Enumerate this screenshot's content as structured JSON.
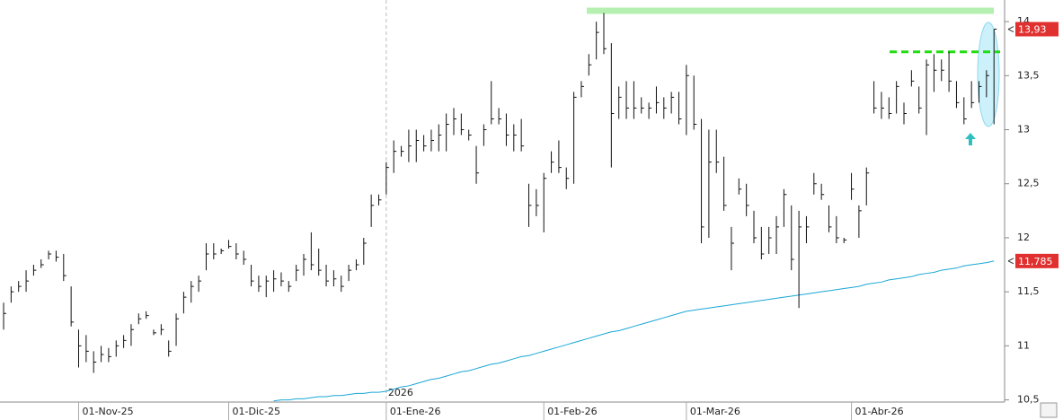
{
  "chart_data": {
    "type": "ohlc",
    "categories": [
      null,
      null,
      null,
      null,
      null,
      null,
      null,
      null,
      null,
      null,
      "01-Nov-25",
      null,
      null,
      null,
      null,
      null,
      null,
      null,
      null,
      null,
      null,
      null,
      null,
      null,
      null,
      null,
      null,
      null,
      null,
      null,
      "01-Dic-25",
      null,
      null,
      null,
      null,
      null,
      null,
      null,
      null,
      null,
      null,
      null,
      null,
      null,
      null,
      null,
      null,
      null,
      null,
      null,
      null,
      "01-Ene-26",
      null,
      null,
      null,
      null,
      null,
      null,
      null,
      null,
      null,
      null,
      null,
      null,
      null,
      null,
      null,
      null,
      null,
      null,
      null,
      null,
      "01-Feb-26",
      null,
      null,
      null,
      null,
      null,
      null,
      null,
      null,
      null,
      null,
      null,
      null,
      null,
      null,
      null,
      null,
      null,
      null,
      "01-Mar-26",
      null,
      null,
      null,
      null,
      null,
      null,
      null,
      null,
      null,
      null,
      null,
      null,
      null,
      null,
      null,
      null,
      null,
      null,
      null,
      null,
      null,
      "01-Abr-26",
      null,
      null,
      null,
      null,
      null,
      null,
      null,
      null,
      null,
      null,
      null,
      null,
      null,
      null,
      null,
      null,
      null,
      null,
      null
    ],
    "high": [
      11.4,
      11.55,
      11.6,
      11.7,
      11.75,
      11.8,
      11.88,
      11.88,
      11.85,
      11.55,
      11.15,
      11.1,
      10.95,
      11.0,
      10.98,
      11.05,
      11.1,
      11.2,
      11.3,
      11.32,
      11.15,
      11.2,
      11.05,
      11.3,
      11.5,
      11.6,
      11.65,
      11.95,
      11.95,
      11.9,
      11.98,
      11.95,
      11.88,
      11.75,
      11.65,
      11.65,
      11.7,
      11.68,
      11.6,
      11.75,
      11.85,
      12.05,
      11.9,
      11.75,
      11.7,
      11.65,
      11.75,
      11.8,
      12.0,
      12.4,
      12.4,
      12.7,
      12.9,
      12.85,
      13.0,
      13.0,
      12.95,
      13.0,
      13.05,
      13.15,
      13.2,
      13.15,
      13.0,
      12.85,
      13.05,
      13.45,
      13.2,
      13.15,
      13.05,
      13.1,
      12.5,
      12.45,
      12.6,
      12.8,
      12.9,
      12.65,
      13.35,
      13.45,
      13.7,
      14.0,
      14.08,
      13.8,
      13.4,
      13.45,
      13.45,
      13.3,
      13.25,
      13.4,
      13.3,
      13.35,
      13.35,
      13.6,
      13.5,
      13.1,
      13.0,
      13.0,
      12.75,
      12.1,
      12.55,
      12.5,
      12.25,
      12.1,
      12.1,
      12.2,
      12.45,
      12.3,
      12.25,
      12.2,
      12.6,
      12.5,
      12.3,
      12.2,
      12.0,
      12.6,
      12.3,
      12.65,
      13.45,
      13.35,
      13.3,
      13.45,
      13.25,
      13.55,
      13.4,
      13.65,
      13.7,
      13.65,
      13.72,
      13.45,
      13.3,
      13.45,
      13.45,
      13.55,
      13.93
    ],
    "low": [
      11.15,
      11.4,
      11.5,
      11.5,
      11.65,
      11.72,
      11.8,
      11.78,
      11.6,
      11.18,
      10.8,
      10.85,
      10.75,
      10.85,
      10.85,
      10.9,
      10.98,
      11.0,
      11.2,
      11.25,
      11.1,
      11.1,
      10.9,
      11.0,
      11.3,
      11.4,
      11.5,
      11.7,
      11.8,
      11.85,
      11.9,
      11.8,
      11.75,
      11.55,
      11.5,
      11.45,
      11.5,
      11.55,
      11.5,
      11.6,
      11.65,
      11.7,
      11.65,
      11.55,
      11.55,
      11.5,
      11.6,
      11.7,
      11.75,
      12.1,
      12.3,
      12.4,
      12.6,
      12.75,
      12.7,
      12.7,
      12.8,
      12.8,
      12.8,
      12.8,
      12.95,
      12.95,
      12.9,
      12.5,
      12.85,
      13.05,
      13.05,
      12.85,
      12.8,
      12.8,
      12.1,
      12.2,
      12.05,
      12.6,
      12.6,
      12.45,
      12.5,
      13.3,
      13.5,
      13.65,
      13.7,
      12.65,
      13.1,
      13.1,
      13.1,
      13.15,
      13.1,
      13.15,
      13.1,
      13.15,
      13.05,
      12.95,
      13.0,
      11.95,
      12.0,
      12.6,
      12.25,
      11.7,
      12.4,
      12.2,
      11.95,
      11.8,
      11.85,
      11.85,
      12.1,
      11.7,
      11.35,
      11.95,
      12.4,
      12.35,
      12.05,
      11.95,
      11.95,
      12.35,
      12.0,
      12.3,
      13.15,
      13.1,
      13.1,
      13.15,
      13.05,
      13.4,
      13.15,
      12.95,
      13.35,
      13.45,
      13.35,
      13.2,
      13.05,
      13.2,
      13.25,
      13.3,
      13.05
    ],
    "close": [
      11.3,
      11.5,
      11.55,
      11.6,
      11.7,
      11.75,
      11.85,
      11.82,
      11.65,
      11.22,
      11.0,
      10.95,
      10.85,
      10.92,
      10.9,
      11.0,
      11.05,
      11.15,
      11.25,
      11.28,
      11.12,
      11.15,
      10.95,
      11.25,
      11.45,
      11.55,
      11.6,
      11.85,
      11.85,
      11.88,
      11.92,
      11.85,
      11.8,
      11.6,
      11.55,
      11.6,
      11.62,
      11.6,
      11.55,
      11.7,
      11.8,
      11.75,
      11.7,
      11.6,
      11.62,
      11.55,
      11.7,
      11.75,
      11.95,
      12.3,
      12.35,
      12.65,
      12.8,
      12.8,
      12.85,
      12.9,
      12.85,
      12.9,
      12.95,
      13.05,
      13.1,
      13.0,
      12.95,
      12.6,
      13.0,
      13.1,
      13.1,
      12.95,
      12.95,
      12.85,
      12.3,
      12.3,
      12.55,
      12.7,
      12.65,
      12.55,
      13.3,
      13.4,
      13.6,
      13.9,
      13.75,
      13.15,
      13.3,
      13.2,
      13.2,
      13.2,
      13.2,
      13.25,
      13.2,
      13.3,
      13.1,
      13.5,
      13.05,
      12.1,
      12.7,
      12.7,
      12.3,
      11.95,
      12.45,
      12.3,
      12.0,
      11.85,
      12.0,
      12.1,
      12.4,
      11.8,
      12.1,
      12.1,
      12.5,
      12.4,
      12.1,
      12.0,
      11.98,
      12.45,
      12.25,
      12.6,
      13.2,
      13.2,
      13.15,
      13.4,
      13.15,
      13.45,
      13.2,
      13.6,
      13.55,
      13.55,
      13.45,
      13.25,
      13.1,
      13.25,
      13.4,
      13.5,
      13.93
    ],
    "color": "#111111",
    "moving_average": {
      "color": "#1aa7d6",
      "values": [
        null,
        null,
        null,
        null,
        null,
        null,
        null,
        null,
        null,
        null,
        null,
        null,
        null,
        null,
        null,
        null,
        null,
        null,
        null,
        null,
        null,
        null,
        null,
        null,
        null,
        null,
        null,
        null,
        null,
        null,
        null,
        null,
        null,
        null,
        null,
        null,
        10.49,
        10.5,
        10.5,
        10.51,
        10.51,
        10.52,
        10.53,
        10.53,
        10.54,
        10.54,
        10.55,
        10.56,
        10.56,
        10.57,
        10.57,
        10.58,
        10.6,
        10.62,
        10.63,
        10.65,
        10.67,
        10.69,
        10.7,
        10.72,
        10.74,
        10.76,
        10.77,
        10.79,
        10.81,
        10.83,
        10.84,
        10.86,
        10.88,
        10.9,
        10.91,
        10.93,
        10.95,
        10.97,
        10.99,
        11.01,
        11.03,
        11.05,
        11.07,
        11.09,
        11.11,
        11.13,
        11.14,
        11.16,
        11.18,
        11.2,
        11.22,
        11.24,
        11.26,
        11.28,
        11.3,
        11.32,
        11.33,
        11.34,
        11.35,
        11.36,
        11.37,
        11.38,
        11.39,
        11.4,
        11.41,
        11.42,
        11.43,
        11.44,
        11.45,
        11.46,
        11.47,
        11.48,
        11.49,
        11.5,
        11.51,
        11.52,
        11.53,
        11.54,
        11.55,
        11.57,
        11.58,
        11.59,
        11.61,
        11.62,
        11.63,
        11.64,
        11.66,
        11.67,
        11.68,
        11.7,
        11.71,
        11.72,
        11.74,
        11.75,
        11.76,
        11.77,
        11.785
      ]
    },
    "last_price": {
      "value": 13.93,
      "label": "13,93",
      "color": "#e03030"
    },
    "ma_price": {
      "value": 11.785,
      "label": "11,785",
      "color": "#e03030"
    },
    "hlines": [
      {
        "value": 14.1,
        "color": "#b5f0b0",
        "dash": false
      },
      {
        "value": 13.72,
        "color": "#22dd11",
        "dash": true
      }
    ],
    "year_label": "2026",
    "ylim": [
      10.48,
      14.2
    ],
    "yticks": [
      {
        "value": 10.5,
        "label": "10,5"
      },
      11,
      {
        "value": 11.5,
        "label": "11,5"
      },
      12,
      {
        "value": 12.5,
        "label": "12,5"
      },
      13,
      {
        "value": 13.5,
        "label": "13,5"
      },
      14
    ]
  }
}
